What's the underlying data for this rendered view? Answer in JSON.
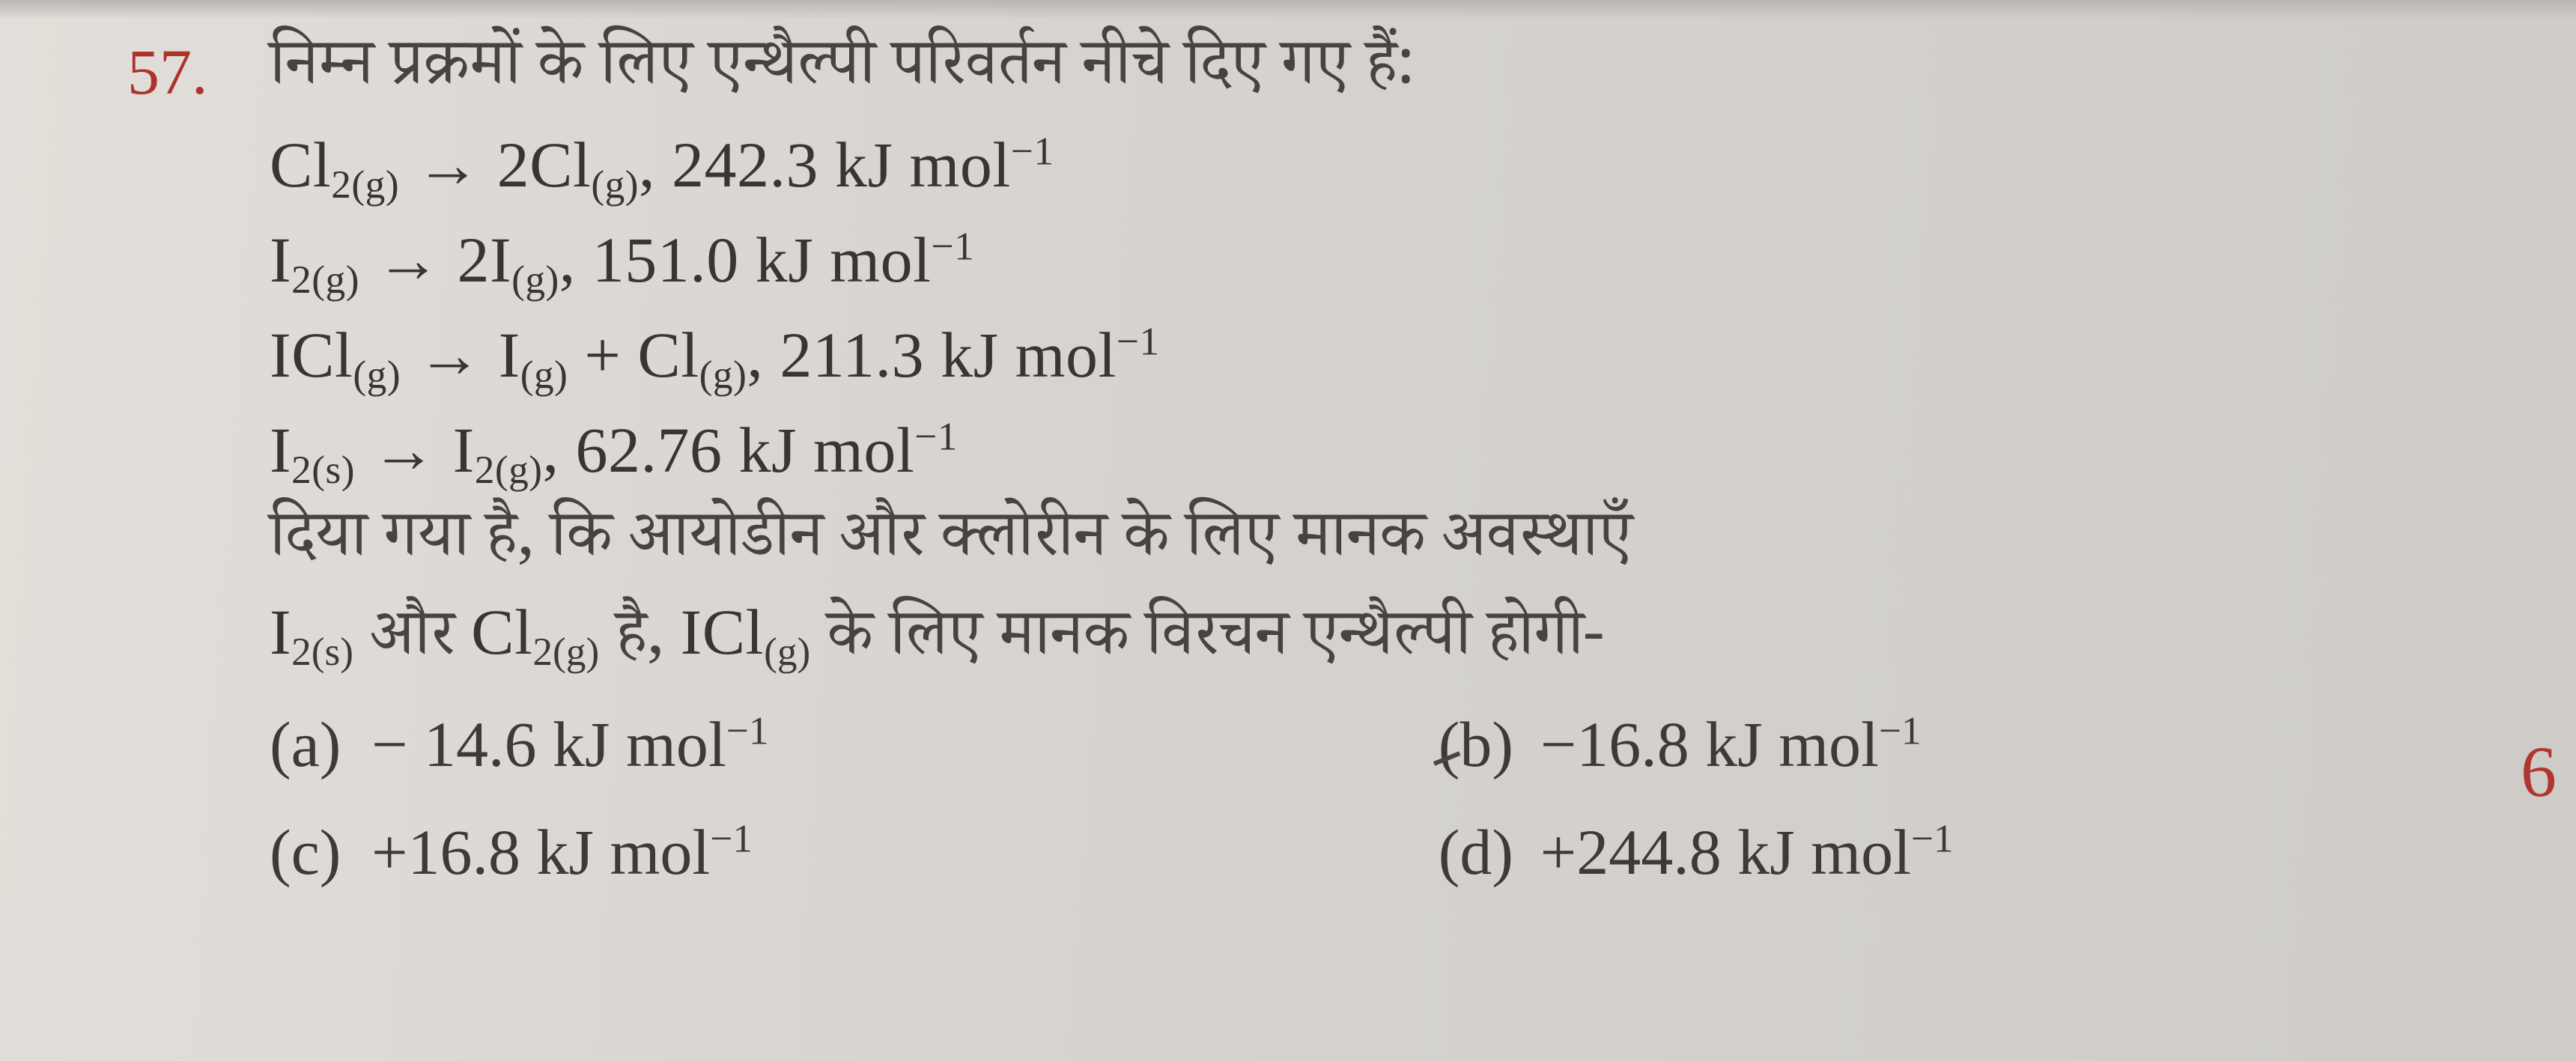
{
  "question": {
    "number": "57.",
    "prompt_hi": "निम्न प्रक्रमों के लिए एन्थैल्पी परिवर्तन नीचे दिए गए हैं:",
    "equations": {
      "eq1": {
        "lhs": "Cl",
        "lhs_sub": "2(g)",
        "arrow": "→",
        "rhs": "2Cl",
        "rhs_sub": "(g)",
        "value": ", 242.3 kJ mol",
        "exp": "−1"
      },
      "eq2": {
        "lhs": "I",
        "lhs_sub": "2(g)",
        "arrow": "→",
        "rhs": "2I",
        "rhs_sub": "(g)",
        "value": ", 151.0 kJ mol",
        "exp": "−1"
      },
      "eq3": {
        "lhs": "ICl",
        "lhs_sub": "(g)",
        "arrow": "→",
        "rhs1": "I",
        "rhs1_sub": "(g)",
        "plus": " + ",
        "rhs2": "Cl",
        "rhs2_sub": "(g)",
        "value": ", 211.3 kJ mol",
        "exp": "−1"
      },
      "eq4": {
        "lhs": "I",
        "lhs_sub": "2(s)",
        "arrow": "→",
        "rhs": "I",
        "rhs_sub": "2(g)",
        "value": ", 62.76 kJ mol",
        "exp": "−1"
      }
    },
    "middle_hi_line1": "दिया गया है, कि आयोडीन और क्लोरीन के लिए मानक अवस्थाएँ",
    "middle_seg1": "I",
    "middle_seg1_sub": "2(s)",
    "middle_hi_seg2": " और ",
    "middle_seg3": "Cl",
    "middle_seg3_sub": "2(g)",
    "middle_hi_seg4": " है, ",
    "middle_seg5": "ICl",
    "middle_seg5_sub": "(g)",
    "middle_hi_seg6": " के लिए मानक विरचन एन्थैल्पी होगी-",
    "options": {
      "a": {
        "label": "(a)",
        "text": "− 14.6 kJ mol",
        "exp": "−1"
      },
      "b": {
        "label": "(b)",
        "text": "−16.8 kJ mol",
        "exp": "−1"
      },
      "c": {
        "label": "(c)",
        "text": "+16.8 kJ mol",
        "exp": "−1"
      },
      "d": {
        "label": "(d)",
        "text": "+244.8 kJ mol",
        "exp": "−1"
      }
    }
  },
  "margin_mark": "6",
  "colors": {
    "question_number": "#b0302a",
    "body_text": "#3a3530",
    "background": "#d8d5d2",
    "margin_mark": "#b23630"
  },
  "typography": {
    "base_font_size_pt": 64,
    "font_family": "Times New Roman / Noto Serif Devanagari"
  }
}
